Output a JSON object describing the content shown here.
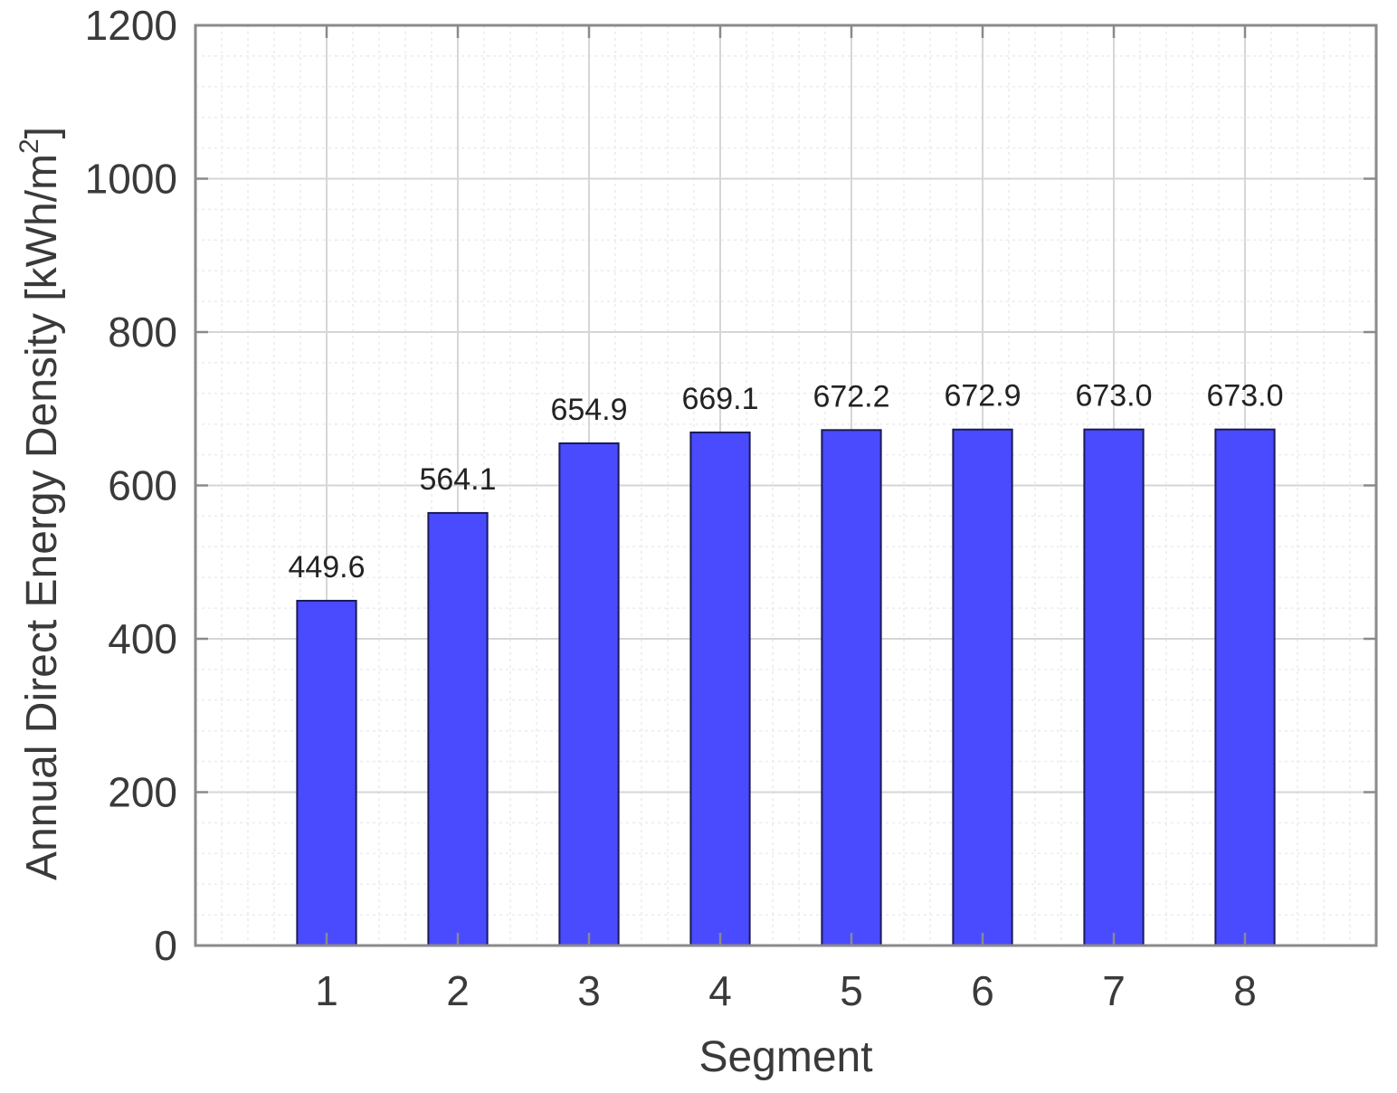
{
  "chart_data": {
    "type": "bar",
    "title": "",
    "xlabel": "Segment",
    "ylabel_main": "Annual Direct Energy Density [kWh/m",
    "ylabel_sup": "2",
    "ylabel_close": "]",
    "categories": [
      "1",
      "2",
      "3",
      "4",
      "5",
      "6",
      "7",
      "8"
    ],
    "values": [
      449.6,
      564.1,
      654.9,
      669.1,
      672.2,
      672.9,
      673.0,
      673.0
    ],
    "data_labels": [
      "449.6",
      "564.1",
      "654.9",
      "669.1",
      "672.2",
      "672.9",
      "673.0",
      "673.0"
    ],
    "xlim": [
      0,
      9
    ],
    "ylim": [
      0,
      1200
    ],
    "yticks": [
      0,
      200,
      400,
      600,
      800,
      1000,
      1200
    ],
    "ytick_labels": [
      "0",
      "200",
      "400",
      "600",
      "800",
      "1000",
      "1200"
    ],
    "y_minor_step": 40,
    "x_minor_step": 0.2,
    "grid": true,
    "minor_grid": true,
    "legend": "none",
    "colors": {
      "bar_fill": "#4a4aff",
      "bar_stroke": "#1a1a55",
      "axes": "#8a8a8a",
      "grid_major": "#d6d6d6",
      "grid_minor": "#ececec"
    }
  }
}
